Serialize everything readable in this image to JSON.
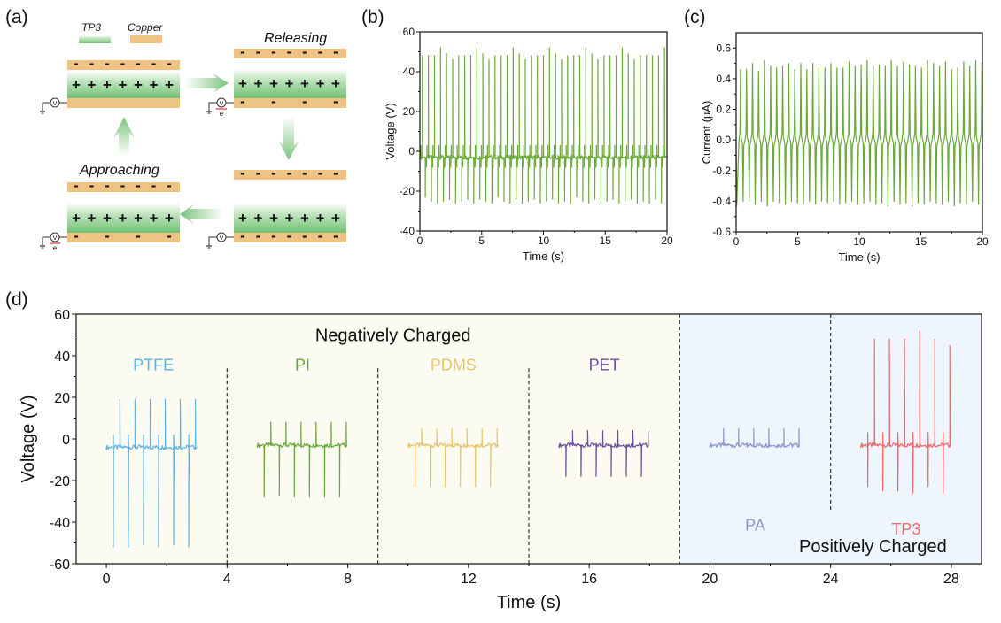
{
  "panel_labels": {
    "a": "(a)",
    "b": "(b)",
    "c": "(c)",
    "d": "(d)"
  },
  "schematic": {
    "legend": [
      {
        "name": "TP3",
        "color": "#7cc47e"
      },
      {
        "name": "Copper",
        "color": "#eec383"
      }
    ],
    "stages": {
      "releasing": "Releasing",
      "approaching": "Approaching"
    },
    "plus_sign": "+",
    "minus_sign": "-",
    "meter_label": "V",
    "electron_label": "e",
    "arrow_color": "#7cc47e"
  },
  "chart_data": [
    {
      "id": "b",
      "type": "line",
      "title": "",
      "xlabel": "Time (s)",
      "ylabel": "Voltage (V)",
      "xlim": [
        0,
        20
      ],
      "ylim": [
        -40,
        60
      ],
      "xticks": [
        "0",
        "5",
        "10",
        "15",
        "20"
      ],
      "xtick_values": [
        0,
        5,
        10,
        15,
        20
      ],
      "yticks": [
        "-40",
        "-20",
        "0",
        "20",
        "40",
        "60"
      ],
      "ytick_values": [
        -40,
        -20,
        0,
        20,
        40,
        60
      ],
      "color": "#6aa83a",
      "series": [
        {
          "name": "Voltage",
          "baseline": -3,
          "period_s": 0.49,
          "first_peak_s": 0.2,
          "peaks_V": [
            48,
            48,
            48,
            52,
            49,
            46,
            48,
            48,
            48,
            52,
            49,
            46,
            48,
            48,
            48,
            52,
            49,
            46,
            48,
            48,
            48,
            52,
            49,
            46,
            48,
            48,
            48,
            52,
            49,
            46,
            48,
            48,
            48,
            52,
            49,
            46,
            48,
            48,
            48,
            48,
            52
          ],
          "troughs_V": [
            -23,
            -25,
            -26,
            -25,
            -24,
            -26,
            -25,
            -24,
            -26,
            -24,
            -25,
            -26,
            -23,
            -25,
            -26,
            -24,
            -26,
            -25,
            -24,
            -26,
            -25,
            -24,
            -26,
            -25,
            -26,
            -23,
            -25,
            -26,
            -24,
            -26,
            -25,
            -24,
            -26,
            -25,
            -24,
            -26,
            -25,
            -26,
            -24,
            -26,
            -25
          ]
        }
      ]
    },
    {
      "id": "c",
      "type": "line",
      "title": "",
      "xlabel": "Time (s)",
      "ylabel": "Current (μA)",
      "xlim": [
        0,
        20
      ],
      "ylim": [
        -0.6,
        0.7
      ],
      "xticks": [
        "0",
        "5",
        "10",
        "15",
        "20"
      ],
      "xtick_values": [
        0,
        5,
        10,
        15,
        20
      ],
      "yticks": [
        "-0.6",
        "-0.4",
        "-0.2",
        "0.0",
        "0.2",
        "0.4",
        "0.6"
      ],
      "ytick_values": [
        -0.6,
        -0.4,
        -0.2,
        0.0,
        0.2,
        0.4,
        0.6
      ],
      "color": "#6aa83a",
      "series": [
        {
          "name": "Current",
          "baseline": 0.0,
          "period_s": 0.49,
          "first_peak_s": 0.35,
          "peaks_uA": [
            0.46,
            0.46,
            0.5,
            0.45,
            0.52,
            0.48,
            0.47,
            0.48,
            0.5,
            0.46,
            0.5,
            0.46,
            0.5,
            0.47,
            0.47,
            0.5,
            0.47,
            0.47,
            0.51,
            0.48,
            0.49,
            0.52,
            0.48,
            0.49,
            0.48,
            0.52,
            0.48,
            0.51,
            0.49,
            0.48,
            0.47,
            0.52,
            0.5,
            0.48,
            0.51,
            0.46,
            0.47,
            0.51,
            0.48,
            0.52,
            0.5
          ],
          "troughs_uA": [
            -0.43,
            -0.4,
            -0.4,
            -0.42,
            -0.4,
            -0.43,
            -0.4,
            -0.41,
            -0.42,
            -0.4,
            -0.41,
            -0.42,
            -0.4,
            -0.42,
            -0.4,
            -0.41,
            -0.4,
            -0.42,
            -0.41,
            -0.4,
            -0.42,
            -0.41,
            -0.4,
            -0.42,
            -0.41,
            -0.43,
            -0.4,
            -0.42,
            -0.41,
            -0.43,
            -0.41,
            -0.42,
            -0.4,
            -0.41,
            -0.42,
            -0.4,
            -0.43,
            -0.41,
            -0.42,
            -0.4,
            -0.42
          ]
        }
      ]
    },
    {
      "id": "d",
      "type": "line",
      "title": "",
      "xlabel": "Time (s)",
      "ylabel": "Voltage (V)",
      "xlim": [
        -1,
        29
      ],
      "ylim": [
        -60,
        60
      ],
      "xticks": [
        "0",
        "4",
        "8",
        "12",
        "16",
        "20",
        "24",
        "28"
      ],
      "xtick_values": [
        0,
        4,
        8,
        12,
        16,
        20,
        24,
        28
      ],
      "yticks": [
        "-60",
        "-40",
        "-20",
        "0",
        "20",
        "40",
        "60"
      ],
      "ytick_values": [
        -60,
        -40,
        -20,
        0,
        20,
        40,
        60
      ],
      "regions": [
        {
          "label": "Negatively Charged",
          "x_range": [
            -1,
            19
          ],
          "color": "#fbfbf1"
        },
        {
          "label": "Positively Charged",
          "x_range": [
            19,
            29
          ],
          "color": "#eef5fc"
        }
      ],
      "dividers_x": [
        4,
        9,
        14,
        19,
        24
      ],
      "series": [
        {
          "name": "PTFE",
          "color": "#5cb3e6",
          "t_range": [
            0,
            3
          ],
          "baseline": -4,
          "peaks": [
            19,
            19,
            19,
            19,
            19,
            19
          ],
          "troughs": [
            -52,
            -52,
            -51,
            -52,
            -51,
            -52
          ]
        },
        {
          "name": "PI",
          "color": "#6aa83a",
          "t_range": [
            5,
            8
          ],
          "baseline": -3,
          "peaks": [
            8,
            8,
            8,
            8,
            8,
            8
          ],
          "troughs": [
            -28,
            -27,
            -28,
            -28,
            -28,
            -28
          ]
        },
        {
          "name": "PDMS",
          "color": "#ebc46a",
          "t_range": [
            10,
            13
          ],
          "baseline": -3,
          "peaks": [
            5,
            5,
            5,
            5,
            5,
            5
          ],
          "troughs": [
            -23,
            -23,
            -23,
            -23,
            -23,
            -23
          ]
        },
        {
          "name": "PET",
          "color": "#6b4ea0",
          "t_range": [
            15,
            18
          ],
          "baseline": -3,
          "peaks": [
            4,
            4,
            4,
            4,
            4,
            4
          ],
          "troughs": [
            -18,
            -18,
            -18,
            -18,
            -18,
            -18
          ]
        },
        {
          "name": "PA",
          "color": "#8f98cc",
          "t_range": [
            20,
            23
          ],
          "baseline": -3,
          "peaks": [
            5,
            5,
            5,
            5,
            5,
            5
          ],
          "troughs": [
            -4,
            -4,
            -4,
            -4,
            -4,
            -4
          ]
        },
        {
          "name": "TP3",
          "color": "#ee6b6b",
          "t_range": [
            25,
            28
          ],
          "baseline": -3,
          "peaks": [
            48,
            48,
            48,
            52,
            48,
            45
          ],
          "troughs": [
            -23,
            -25,
            -25,
            -26,
            -23,
            -26
          ]
        }
      ]
    }
  ]
}
